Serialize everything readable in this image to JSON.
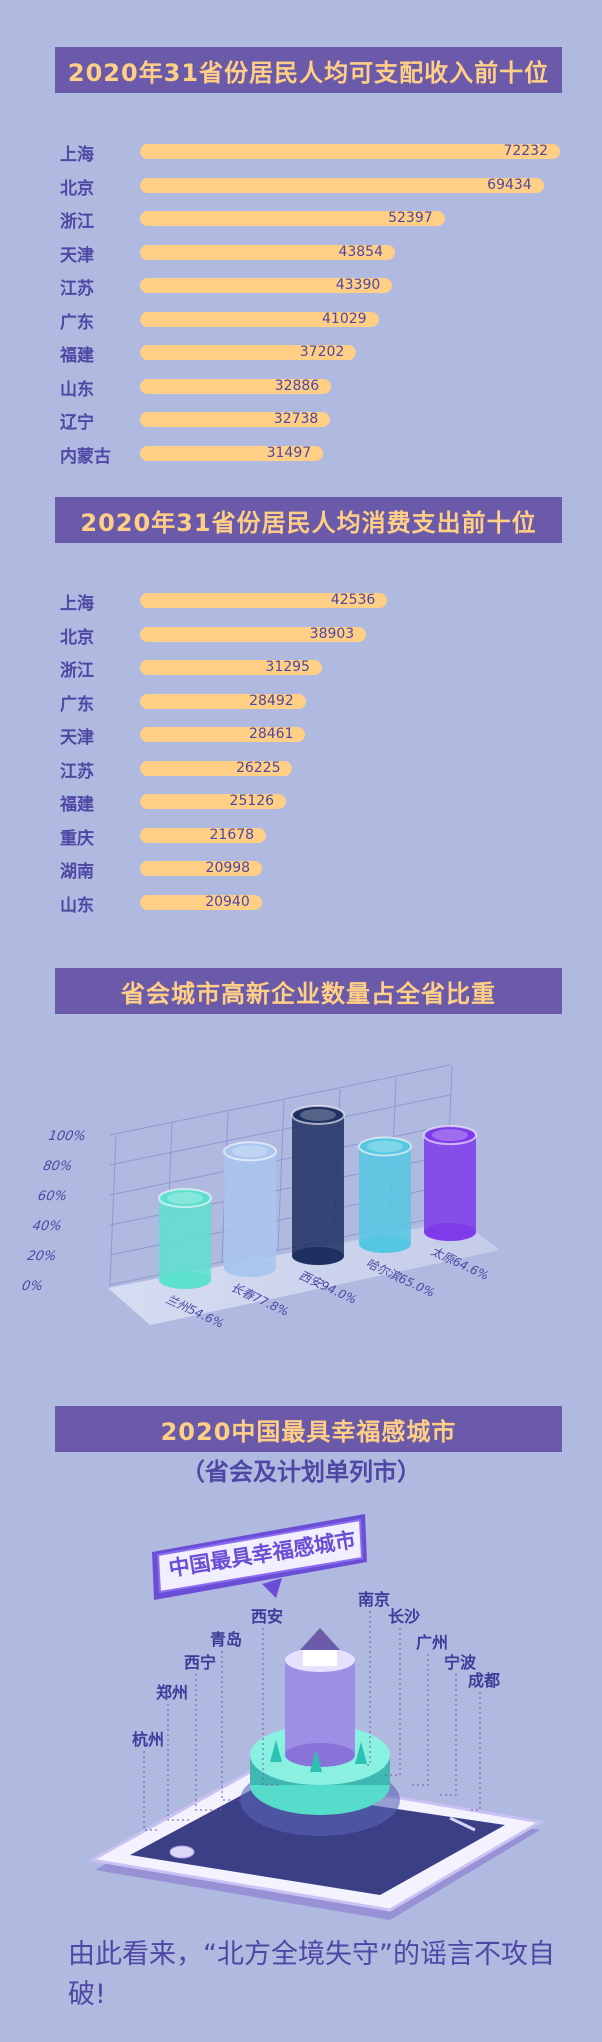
{
  "sections": {
    "income_title": "2020年31省份居民人均可支配收入前十位",
    "spending_title": "2020年31省份居民人均消费支出前十位",
    "hitech_title": "省会城市高新企业数量占全省比重",
    "happy_title": "2020中国最具幸福感城市",
    "happy_subtitle": "（省会及计划单列市）",
    "happy_sign": "中国最具幸福感城市"
  },
  "closing_text": "由此看来，“北方全境失守”的谣言不攻自破!",
  "chart_data": [
    {
      "type": "bar",
      "orientation": "horizontal",
      "title": "2020年31省份居民人均可支配收入前十位",
      "categories": [
        "上海",
        "北京",
        "浙江",
        "天津",
        "江苏",
        "广东",
        "福建",
        "山东",
        "辽宁",
        "内蒙古"
      ],
      "values": [
        72232,
        69434,
        52397,
        43854,
        43390,
        41029,
        37202,
        32886,
        32738,
        31497
      ],
      "data_labels": [
        "72232",
        "69434",
        "52397",
        "43854",
        "43390",
        "41029",
        "37202",
        "32886",
        "32738",
        "31497"
      ],
      "max": 72232
    },
    {
      "type": "bar",
      "orientation": "horizontal",
      "title": "2020年31省份居民人均消费支出前十位",
      "categories": [
        "上海",
        "北京",
        "浙江",
        "广东",
        "天津",
        "江苏",
        "福建",
        "重庆",
        "湖南",
        "山东"
      ],
      "values": [
        42536,
        38903,
        31295,
        28492,
        28461,
        26225,
        25126,
        21678,
        20998,
        20940
      ],
      "data_labels": [
        "42536",
        "38903",
        "31295",
        "28492",
        "28461",
        "26225",
        "25126",
        "21678",
        "20998",
        "20940"
      ],
      "max": 72232
    },
    {
      "type": "bar",
      "style": "3d-cylinder",
      "title": "省会城市高新企业数量占全省比重",
      "categories": [
        "兰州",
        "长春",
        "西安",
        "哈尔滨",
        "太原"
      ],
      "values": [
        54.6,
        77.8,
        94.0,
        65.0,
        64.6
      ],
      "data_labels": [
        "兰州54.6%",
        "长春77.8%",
        "西安94.0%",
        "哈尔滨65.0%",
        "太原64.6%"
      ],
      "y_ticks": [
        "0%",
        "20%",
        "40%",
        "60%",
        "80%",
        "100%"
      ],
      "ylim": [
        0,
        100
      ],
      "colors": [
        "#5ee0cf",
        "#a9c6ee",
        "#1f2f62",
        "#55c7e2",
        "#7f3bea"
      ]
    }
  ],
  "happy_cities": [
    "杭州",
    "郑州",
    "西宁",
    "青岛",
    "西安",
    "南京",
    "长沙",
    "广州",
    "宁波",
    "成都"
  ],
  "colors": {
    "background": "#b0b9e0",
    "banner": "#6a5aa9",
    "bar": "#ffcf86",
    "text": "#4e48a4"
  }
}
